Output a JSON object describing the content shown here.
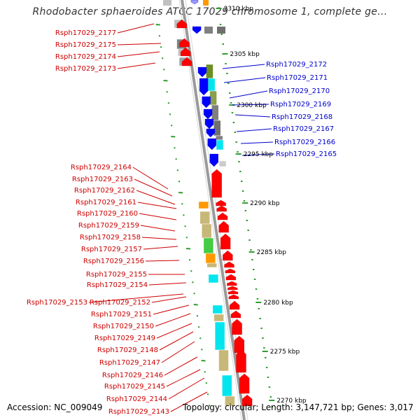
{
  "title": "Rhodobacter sphaeroides ATCC 17029 chromosome 1, complete ge...",
  "footer": {
    "accession": "Accession: NC_009049",
    "topology": "Topology: circular; Length: 3,147,721 bp; Genes: 3,017"
  },
  "colors": {
    "forward_label": "#cc0000",
    "reverse_label": "#0000cc",
    "forward_gene": "#ff0000",
    "reverse_gene": "#0000ff",
    "backbone": "#8c8c8c",
    "ruler_tick": "#2f9e2f",
    "cyan": "#00e5ee",
    "olive": "#c8b878",
    "green": "#44cc44",
    "orange": "#ff9900",
    "gray": "#808080"
  },
  "kbp_labels": [
    "2310 kbp",
    "2305 kbp",
    "2300 kbp",
    "2295 kbp",
    "2290 kbp",
    "2285 kbp",
    "2280 kbp",
    "2275 kbp",
    "2270 kbp"
  ],
  "reverse_genes": [
    "Rsph17029_2172",
    "Rsph17029_2171",
    "Rsph17029_2170",
    "Rsph17029_2169",
    "Rsph17029_2168",
    "Rsph17029_2167",
    "Rsph17029_2166",
    "Rsph17029_2165"
  ],
  "forward_genes_top": [
    "Rsph17029_2177",
    "Rsph17029_2175",
    "Rsph17029_2174",
    "Rsph17029_2173"
  ],
  "forward_genes": [
    "Rsph17029_2164",
    "Rsph17029_2163",
    "Rsph17029_2162",
    "Rsph17029_2161",
    "Rsph17029_2160",
    "Rsph17029_2159",
    "Rsph17029_2158",
    "Rsph17029_2157",
    "Rsph17029_2156",
    "Rsph17029_2155",
    "Rsph17029_2154",
    "Rsph17029_2153",
    "Rsph17029_2152",
    "Rsph17029_2151",
    "Rsph17029_2150",
    "Rsph17029_2149",
    "Rsph17029_2148",
    "Rsph17029_2147",
    "Rsph17029_2146",
    "Rsph17029_2145",
    "Rsph17029_2144",
    "Rsph17029_2143"
  ]
}
